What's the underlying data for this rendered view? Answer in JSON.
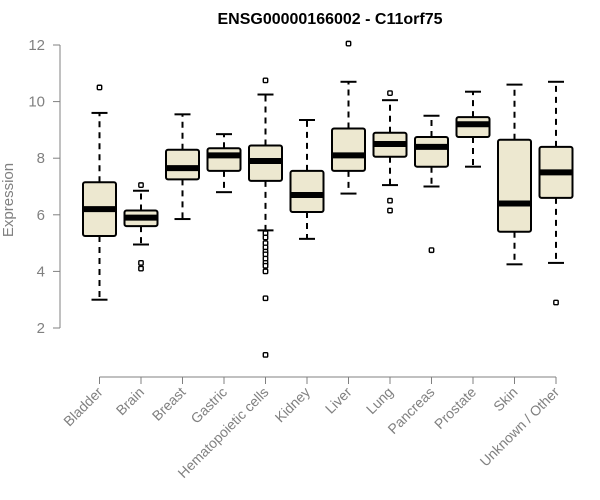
{
  "chart_data": {
    "type": "boxplot",
    "title": "ENSG00000166002 - C11orf75",
    "xlabel": "",
    "ylabel": "Expression",
    "ylim": [
      2,
      12
    ],
    "yticks": [
      2,
      4,
      6,
      8,
      10,
      12
    ],
    "box_fill": "#ede8d0",
    "stroke": "#000000",
    "axis_color": "#808080",
    "categories": [
      "Bladder",
      "Brain",
      "Breast",
      "Gastric",
      "Hematopoietic cells",
      "Kidney",
      "Liver",
      "Lung",
      "Pancreas",
      "Prostate",
      "Skin",
      "Unknown / Other"
    ],
    "boxes": [
      {
        "label": "Bladder",
        "min": 3.0,
        "q1": 5.25,
        "median": 6.2,
        "q3": 7.15,
        "max": 9.6,
        "outliers": [
          10.5
        ]
      },
      {
        "label": "Brain",
        "min": 4.95,
        "q1": 5.6,
        "median": 5.9,
        "q3": 6.15,
        "max": 6.85,
        "outliers": [
          7.05,
          4.3,
          4.1
        ]
      },
      {
        "label": "Breast",
        "min": 5.85,
        "q1": 7.25,
        "median": 7.65,
        "q3": 8.3,
        "max": 9.55,
        "outliers": []
      },
      {
        "label": "Gastric",
        "min": 6.8,
        "q1": 7.55,
        "median": 8.1,
        "q3": 8.35,
        "max": 8.85,
        "outliers": []
      },
      {
        "label": "Hematopoietic cells",
        "min": 5.45,
        "q1": 7.2,
        "median": 7.9,
        "q3": 8.45,
        "max": 10.25,
        "outliers": [
          10.75,
          5.35,
          5.2,
          5.0,
          4.85,
          4.7,
          4.6,
          4.45,
          4.3,
          4.2,
          4.0,
          3.05,
          1.05
        ]
      },
      {
        "label": "Kidney",
        "min": 5.15,
        "q1": 6.1,
        "median": 6.7,
        "q3": 7.55,
        "max": 9.35,
        "outliers": []
      },
      {
        "label": "Liver",
        "min": 6.75,
        "q1": 7.55,
        "median": 8.1,
        "q3": 9.05,
        "max": 10.7,
        "outliers": [
          12.05
        ]
      },
      {
        "label": "Lung",
        "min": 7.05,
        "q1": 8.05,
        "median": 8.5,
        "q3": 8.9,
        "max": 10.05,
        "outliers": [
          10.3,
          6.5,
          6.15
        ]
      },
      {
        "label": "Pancreas",
        "min": 7.0,
        "q1": 7.7,
        "median": 8.4,
        "q3": 8.75,
        "max": 9.5,
        "outliers": [
          4.75
        ]
      },
      {
        "label": "Prostate",
        "min": 7.7,
        "q1": 8.75,
        "median": 9.2,
        "q3": 9.45,
        "max": 10.35,
        "outliers": []
      },
      {
        "label": "Skin",
        "min": 4.25,
        "q1": 5.4,
        "median": 6.4,
        "q3": 8.65,
        "max": 10.6,
        "outliers": []
      },
      {
        "label": "Unknown / Other",
        "min": 4.3,
        "q1": 6.6,
        "median": 7.5,
        "q3": 8.4,
        "max": 10.7,
        "outliers": [
          2.9
        ]
      }
    ]
  }
}
